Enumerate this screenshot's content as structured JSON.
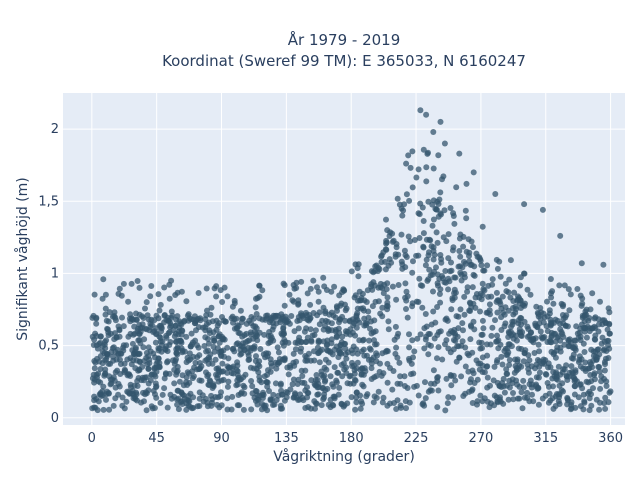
{
  "chart_data": {
    "type": "scatter",
    "title_line1": "År 1979 - 2019",
    "title_line2": "Koordinat (Sweref 99 TM): E 365033, N 6160247",
    "xlabel": "Vågriktning (grader)",
    "ylabel": "Signifikant våghöjd (m)",
    "xlim": [
      -20,
      370
    ],
    "ylim": [
      -0.05,
      2.25
    ],
    "x_ticks": [
      0,
      45,
      90,
      135,
      180,
      225,
      270,
      315,
      360
    ],
    "x_tick_labels": [
      "0",
      "45",
      "90",
      "135",
      "180",
      "225",
      "270",
      "315",
      "360"
    ],
    "y_ticks": [
      0,
      0.5,
      1,
      1.5,
      2
    ],
    "y_tick_labels": [
      "0",
      "0,5",
      "1",
      "1,5",
      "2"
    ],
    "grid": true,
    "point_color": "#34566e",
    "plot_bg": "#e5ecf6",
    "envelope": {
      "direction_deg": [
        0,
        20,
        45,
        90,
        135,
        170,
        190,
        205,
        215,
        225,
        235,
        245,
        255,
        265,
        275,
        285,
        300,
        315,
        335,
        360
      ],
      "typical_max_height_m": [
        0.72,
        0.74,
        0.72,
        0.7,
        0.72,
        0.78,
        0.9,
        1.25,
        1.55,
        1.72,
        1.7,
        1.55,
        1.35,
        1.2,
        1.05,
        0.95,
        0.8,
        0.75,
        0.72,
        0.72
      ],
      "min_height_m": 0.05
    },
    "notable_points": {
      "x": [
        228,
        232,
        242,
        237,
        245,
        255,
        265,
        280,
        300,
        313,
        325,
        340,
        355,
        8,
        55,
        140,
        185,
        205,
        215,
        260
      ],
      "y": [
        2.13,
        2.1,
        2.05,
        1.98,
        1.9,
        1.83,
        1.7,
        1.55,
        1.48,
        1.44,
        1.26,
        1.07,
        1.06,
        0.96,
        0.95,
        0.92,
        0.98,
        1.3,
        1.45,
        1.62
      ]
    }
  }
}
